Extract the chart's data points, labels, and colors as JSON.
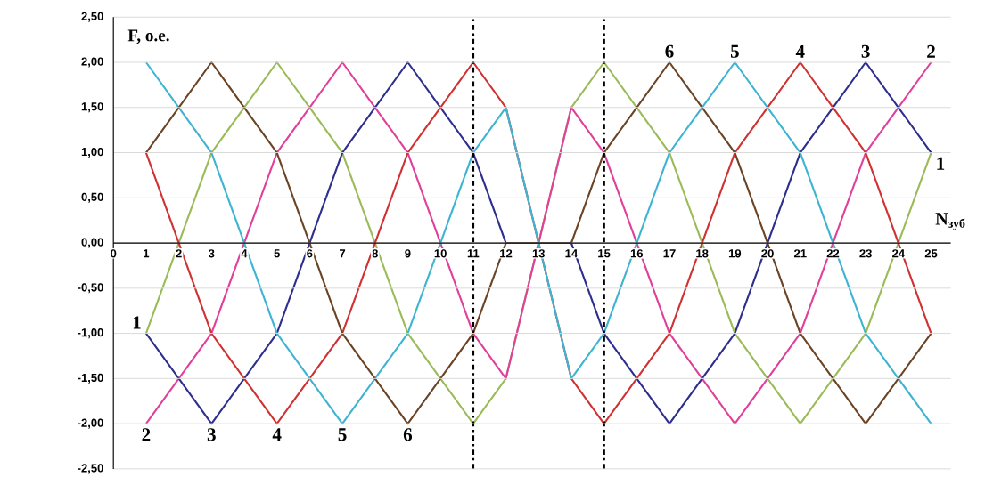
{
  "chart_data": {
    "type": "line",
    "xlabel": "N$_{зуб}$",
    "ylabel": "F, о.е.",
    "x": [
      1,
      2,
      3,
      4,
      5,
      6,
      7,
      8,
      9,
      10,
      11,
      12,
      13,
      14,
      15,
      16,
      17,
      18,
      19,
      20,
      21,
      22,
      23,
      24,
      25
    ],
    "series": [
      {
        "color": "#9bbb59",
        "values": [
          -1,
          0,
          1,
          1.5,
          2,
          1.5,
          1,
          0,
          -1,
          -1.5,
          -2,
          -1.5,
          0,
          1.5,
          2,
          1.5,
          1,
          0,
          -1,
          -1.5,
          -2,
          -1.5,
          -1,
          0,
          1
        ]
      },
      {
        "color": "#e0409a",
        "values": [
          -2,
          -1.5,
          -1,
          0,
          1,
          1.5,
          2,
          1.5,
          1,
          0,
          -1,
          -1.5,
          0,
          1.5,
          1,
          0,
          -1,
          -1.5,
          -2,
          -1.5,
          -1,
          0,
          1,
          1.5,
          2
        ]
      },
      {
        "color": "#2e2e8e",
        "values": [
          -1,
          -1.5,
          -2,
          -1.5,
          -1,
          0,
          1,
          1.5,
          2,
          1.5,
          1,
          0,
          0,
          0,
          -1,
          -1.5,
          -2,
          -1.5,
          -1,
          0,
          1,
          1.5,
          2,
          1.5,
          1
        ]
      },
      {
        "color": "#d03232",
        "values": [
          1,
          0,
          -1,
          -1.5,
          -2,
          -1.5,
          -1,
          0,
          1,
          1.5,
          2,
          1.5,
          0,
          -1.5,
          -2,
          -1.5,
          -1,
          0,
          1,
          1.5,
          2,
          1.5,
          1,
          0,
          -1
        ]
      },
      {
        "color": "#3fb4d2",
        "values": [
          2,
          1.5,
          1,
          0,
          -1,
          -1.5,
          -2,
          -1.5,
          -1,
          0,
          1,
          1.5,
          0,
          -1.5,
          -1,
          0,
          1,
          1.5,
          2,
          1.5,
          1,
          0,
          -1,
          -1.5,
          -2
        ]
      },
      {
        "color": "#6b4426",
        "values": [
          1,
          1.5,
          2,
          1.5,
          1,
          0,
          -1,
          -1.5,
          -2,
          -1.5,
          -1,
          0,
          0,
          0,
          1,
          1.5,
          2,
          1.5,
          1,
          0,
          -1,
          -1.5,
          -2,
          -1.5,
          -1
        ]
      }
    ],
    "xlim": [
      0,
      25.6
    ],
    "xticks": [
      0,
      1,
      2,
      3,
      4,
      5,
      6,
      7,
      8,
      9,
      10,
      11,
      12,
      13,
      14,
      15,
      16,
      17,
      18,
      19,
      20,
      21,
      22,
      23,
      24,
      25
    ],
    "ylim": [
      -2.5,
      2.5
    ],
    "yticks": [
      {
        "value": 2.5,
        "label": "2,50"
      },
      {
        "value": 2,
        "label": "2,00"
      },
      {
        "value": 1.5,
        "label": "1,50"
      },
      {
        "value": 1,
        "label": "1,00"
      },
      {
        "value": 0.5,
        "label": "0,50"
      },
      {
        "value": 0,
        "label": "0,00"
      },
      {
        "value": -0.5,
        "label": "-0,50"
      },
      {
        "value": -1,
        "label": "-1,00"
      },
      {
        "value": -1.5,
        "label": "-1,50"
      },
      {
        "value": -2,
        "label": "-2,00"
      },
      {
        "value": -2.5,
        "label": "-2,50"
      }
    ],
    "grid": "y",
    "marker": "none",
    "line_style": "solid",
    "ref_lines": [
      {
        "axis": "x",
        "value": 11,
        "color": "#000000",
        "line_style": "dashdot"
      },
      {
        "axis": "x",
        "value": 15,
        "color": "#000000",
        "line_style": "dashdot"
      }
    ],
    "annotations": [
      {
        "text": "1",
        "x": 1,
        "y": -1
      },
      {
        "text": "2",
        "x": 1,
        "y": -2
      },
      {
        "text": "3",
        "x": 3,
        "y": -2
      },
      {
        "text": "4",
        "x": 5,
        "y": -2
      },
      {
        "text": "5",
        "x": 7,
        "y": -2
      },
      {
        "text": "6",
        "x": 9,
        "y": -2
      },
      {
        "text": "6",
        "x": 17,
        "y": 2
      },
      {
        "text": "5",
        "x": 19,
        "y": 2
      },
      {
        "text": "4",
        "x": 21,
        "y": 2
      },
      {
        "text": "3",
        "x": 23,
        "y": 2
      },
      {
        "text": "2",
        "x": 25,
        "y": 2
      },
      {
        "text": "1",
        "x": 25,
        "y": 1
      }
    ]
  }
}
